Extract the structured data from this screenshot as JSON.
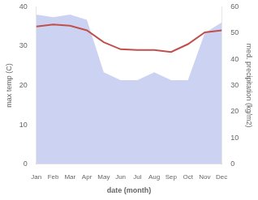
{
  "chart_data": {
    "type": "line",
    "xlabel": "date (month)",
    "ylabel": "max temp (C)",
    "y2label": "med. precipitation (kg/m2)",
    "categories": [
      "Jan",
      "Feb",
      "Mar",
      "Apr",
      "May",
      "Jun",
      "Jul",
      "Aug",
      "Sep",
      "Oct",
      "Nov",
      "Dec"
    ],
    "series": [
      {
        "type": "area",
        "axis": "y2",
        "color": "#aab4e8",
        "values": [
          57,
          56,
          57,
          55,
          35,
          32,
          32,
          35,
          32,
          32,
          50,
          54
        ]
      },
      {
        "type": "line",
        "color": "#c0504d",
        "values": [
          35.0,
          35.5,
          35.2,
          34.0,
          31.0,
          29.2,
          29.0,
          29.0,
          28.5,
          30.5,
          33.5,
          34.0
        ]
      }
    ],
    "ylim": [
      0,
      40
    ],
    "yticks": [
      0,
      10,
      20,
      30,
      40
    ],
    "y2lim": [
      0,
      60
    ],
    "y2ticks": [
      0,
      10,
      20,
      30,
      40,
      50,
      60
    ],
    "grid": false
  }
}
